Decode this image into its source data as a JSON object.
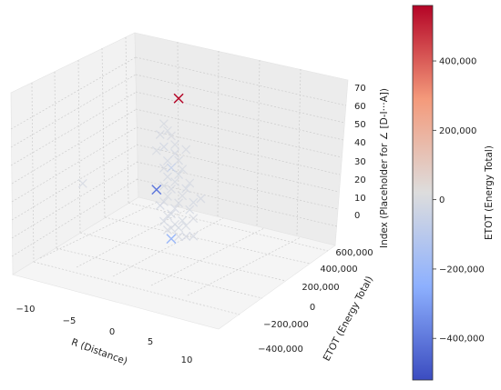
{
  "chart_data": {
    "type": "scatter",
    "projection": "3d",
    "marker": "x",
    "colormap": "coolwarm",
    "grid": true,
    "xlabel": "R (Distance)",
    "ylabel": "ETOT (Energy Total)",
    "zlabel": "Index (Placeholder for ∠ [D-I···A])",
    "xticks": [
      "−10",
      "−5",
      "0",
      "5",
      "10"
    ],
    "yticks": [
      "−400,000",
      "−200,000",
      "0",
      "200,000",
      "400,000",
      "600,000"
    ],
    "zticks": [
      "0",
      "10",
      "20",
      "30",
      "40",
      "50",
      "60",
      "70"
    ],
    "colorbar": {
      "label": "ETOT (Energy Total)",
      "min": -520000,
      "max": 560000,
      "ticks": [
        "−400,000",
        "−200,000",
        "0",
        "200,000",
        "400,000"
      ]
    },
    "points": [
      {
        "x": 1,
        "y": 0,
        "z": 73,
        "c": 560000
      },
      {
        "x": -2,
        "y": 0,
        "z": 16,
        "c": -400000
      },
      {
        "x": 0,
        "y": 0,
        "z": -8,
        "c": -200000
      },
      {
        "x": -12,
        "y": 0,
        "z": 1,
        "c": -15000
      },
      {
        "x": -1,
        "y": 0,
        "z": 55,
        "c": -8000
      },
      {
        "x": -0.5,
        "y": 0,
        "z": 52,
        "c": -12000
      },
      {
        "x": 0,
        "y": 0,
        "z": 50,
        "c": -5000
      },
      {
        "x": -1.5,
        "y": 0,
        "z": 48,
        "c": -15000
      },
      {
        "x": 0.5,
        "y": 0,
        "z": 46,
        "c": -10000
      },
      {
        "x": 2,
        "y": 0,
        "z": 46,
        "c": -6000
      },
      {
        "x": -1,
        "y": 0,
        "z": 42,
        "c": -20000
      },
      {
        "x": 0.5,
        "y": 0,
        "z": 41,
        "c": -18000
      },
      {
        "x": -2,
        "y": 0,
        "z": 38,
        "c": -12000
      },
      {
        "x": 1,
        "y": 0,
        "z": 38,
        "c": -15000
      },
      {
        "x": -0.5,
        "y": 0,
        "z": 35,
        "c": -22000
      },
      {
        "x": 1.5,
        "y": 0,
        "z": 34,
        "c": -10000
      },
      {
        "x": 0,
        "y": 0,
        "z": 32,
        "c": -80000
      },
      {
        "x": -1,
        "y": 0,
        "z": 30,
        "c": -14000
      },
      {
        "x": 1,
        "y": 0,
        "z": 30,
        "c": -16000
      },
      {
        "x": 2.5,
        "y": 0,
        "z": 28,
        "c": -9000
      },
      {
        "x": -0.5,
        "y": 0,
        "z": 26,
        "c": -18000
      },
      {
        "x": 0.5,
        "y": 0,
        "z": 25,
        "c": -12000
      },
      {
        "x": 2,
        "y": 0,
        "z": 24,
        "c": -20000
      },
      {
        "x": 4,
        "y": 0,
        "z": 22,
        "c": -14000
      },
      {
        "x": -1,
        "y": 0,
        "z": 20,
        "c": -16000
      },
      {
        "x": 0,
        "y": 0,
        "z": 20,
        "c": -15000
      },
      {
        "x": 1.5,
        "y": 0,
        "z": 19,
        "c": -12000
      },
      {
        "x": 3,
        "y": 0,
        "z": 18,
        "c": -18000
      },
      {
        "x": -0.5,
        "y": 0,
        "z": 15,
        "c": -10000
      },
      {
        "x": 1,
        "y": 0,
        "z": 14,
        "c": -14000
      },
      {
        "x": 2.5,
        "y": 0,
        "z": 13,
        "c": -16000
      },
      {
        "x": -1,
        "y": 0,
        "z": 11,
        "c": -12000
      },
      {
        "x": 0.5,
        "y": 0,
        "z": 10,
        "c": -15000
      },
      {
        "x": 3,
        "y": 0,
        "z": 9,
        "c": -8000
      },
      {
        "x": -1.5,
        "y": 0,
        "z": 8,
        "c": -20000
      },
      {
        "x": 0,
        "y": 0,
        "z": 6,
        "c": -17000
      },
      {
        "x": 1.5,
        "y": 0,
        "z": 5,
        "c": -13000
      },
      {
        "x": -0.5,
        "y": 0,
        "z": 4,
        "c": -15000
      },
      {
        "x": 2,
        "y": 0,
        "z": 3,
        "c": -12000
      },
      {
        "x": 0.5,
        "y": 0,
        "z": 1,
        "c": -10000
      },
      {
        "x": -1,
        "y": 0,
        "z": 0,
        "c": -18000
      },
      {
        "x": 1,
        "y": 0,
        "z": 0,
        "c": -16000
      },
      {
        "x": 3,
        "y": 0,
        "z": -1,
        "c": -14000
      },
      {
        "x": 0,
        "y": 0,
        "z": -2,
        "c": -12000
      },
      {
        "x": 2,
        "y": 0,
        "z": -3,
        "c": -20000
      },
      {
        "x": -0.5,
        "y": 0,
        "z": -4,
        "c": -9000
      },
      {
        "x": 1,
        "y": 0,
        "z": -5,
        "c": -15000
      }
    ]
  }
}
